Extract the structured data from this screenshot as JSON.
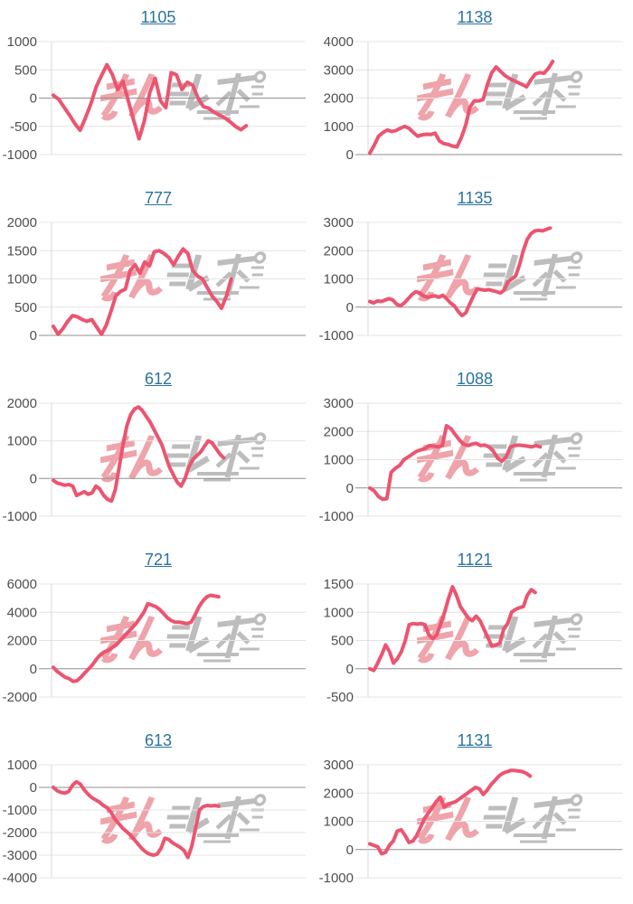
{
  "page": {
    "background": "#ffffff"
  },
  "style": {
    "line_color": "#eb5570",
    "link_color": "#2a739f",
    "tick_color": "#4f4f4f",
    "grid_color": "#e4e4e4",
    "zero_line_color": "#8f8f8f",
    "axis_line_color": "#d8d8d8",
    "watermark_pink": "#efa3aa",
    "watermark_gray": "#bdbdbd"
  },
  "watermark": {
    "text": "みんレポ",
    "pink_part": "みん",
    "gray_part": "レポ"
  },
  "chart_data": [
    {
      "type": "line",
      "title": "1105",
      "title_is_link": true,
      "ylim": [
        -1000,
        1000
      ],
      "yticks": [
        1000,
        500,
        0,
        -500,
        -1000
      ],
      "grid": true,
      "legend": "none",
      "x_extent": 0.77,
      "values": [
        50,
        -20,
        -160,
        -300,
        -450,
        -570,
        -350,
        -100,
        200,
        400,
        590,
        420,
        150,
        300,
        -50,
        -400,
        -720,
        -400,
        100,
        350,
        -50,
        -170,
        450,
        410,
        150,
        280,
        230,
        0,
        -150,
        -180,
        -250,
        -300,
        -350,
        -420,
        -500,
        -560,
        -490
      ]
    },
    {
      "type": "line",
      "title": "1138",
      "title_is_link": true,
      "ylim": [
        0,
        4000
      ],
      "yticks": [
        4000,
        3000,
        2000,
        1000,
        0
      ],
      "grid": true,
      "legend": "none",
      "x_extent": 0.73,
      "values": [
        50,
        330,
        650,
        780,
        870,
        820,
        850,
        930,
        1000,
        930,
        780,
        650,
        700,
        720,
        710,
        760,
        480,
        390,
        360,
        300,
        270,
        600,
        1030,
        1680,
        1900,
        1900,
        1950,
        2480,
        2900,
        3100,
        2950,
        2800,
        2700,
        2620,
        2550,
        2480,
        2400,
        2650,
        2850,
        2900,
        2880,
        3050,
        3300
      ]
    },
    {
      "type": "line",
      "title": "777",
      "title_is_link": true,
      "ylim": [
        0,
        2000
      ],
      "yticks": [
        2000,
        1500,
        1000,
        500,
        0
      ],
      "grid": true,
      "legend": "none",
      "x_extent": 0.71,
      "values": [
        160,
        20,
        120,
        250,
        350,
        330,
        280,
        250,
        280,
        150,
        20,
        180,
        430,
        700,
        780,
        820,
        1150,
        1250,
        1100,
        1300,
        1230,
        1480,
        1500,
        1450,
        1380,
        1250,
        1400,
        1530,
        1450,
        1150,
        1050,
        1000,
        850,
        700,
        600,
        480,
        700,
        1000
      ]
    },
    {
      "type": "line",
      "title": "1135",
      "title_is_link": true,
      "ylim": [
        -1000,
        3000
      ],
      "yticks": [
        3000,
        2000,
        1000,
        0,
        -1000
      ],
      "grid": true,
      "legend": "none",
      "x_extent": 0.72,
      "values": [
        200,
        150,
        220,
        200,
        250,
        300,
        250,
        100,
        50,
        150,
        300,
        450,
        550,
        500,
        400,
        350,
        380,
        400,
        350,
        420,
        300,
        150,
        50,
        -150,
        -300,
        -200,
        100,
        400,
        650,
        620,
        600,
        620,
        580,
        550,
        500,
        600,
        900,
        1000,
        1100,
        1500,
        2000,
        2400,
        2600,
        2700,
        2720,
        2700,
        2750,
        2800
      ]
    },
    {
      "type": "line",
      "title": "612",
      "title_is_link": true,
      "ylim": [
        -1000,
        2000
      ],
      "yticks": [
        2000,
        1000,
        0,
        -1000
      ],
      "grid": true,
      "legend": "none",
      "x_extent": 0.68,
      "values": [
        -50,
        -120,
        -150,
        -180,
        -160,
        -200,
        -450,
        -400,
        -350,
        -420,
        -380,
        -200,
        -280,
        -450,
        -550,
        -600,
        -300,
        300,
        900,
        1400,
        1700,
        1850,
        1900,
        1800,
        1650,
        1500,
        1300,
        1100,
        900,
        600,
        300,
        100,
        -100,
        -200,
        0,
        300,
        500,
        600,
        700,
        850,
        1000,
        950,
        800,
        650,
        550
      ]
    },
    {
      "type": "line",
      "title": "1088",
      "title_is_link": true,
      "ylim": [
        -1000,
        3000
      ],
      "yticks": [
        3000,
        2000,
        1000,
        0,
        -1000
      ],
      "grid": true,
      "legend": "none",
      "x_extent": 0.68,
      "values": [
        0,
        -100,
        -300,
        -400,
        -380,
        550,
        700,
        800,
        1000,
        1100,
        1200,
        1300,
        1350,
        1400,
        1500,
        1480,
        1450,
        1500,
        2200,
        2100,
        1900,
        1700,
        1550,
        1500,
        1550,
        1580,
        1500,
        1520,
        1450,
        1300,
        1050,
        950,
        1100,
        1450,
        1500,
        1520,
        1500,
        1480,
        1450,
        1500,
        1450
      ]
    },
    {
      "type": "line",
      "title": "721",
      "title_is_link": true,
      "ylim": [
        -2000,
        6000
      ],
      "yticks": [
        6000,
        4000,
        2000,
        0,
        -2000
      ],
      "grid": true,
      "legend": "none",
      "x_extent": 0.66,
      "values": [
        100,
        -200,
        -400,
        -600,
        -700,
        -900,
        -850,
        -600,
        -300,
        0,
        300,
        700,
        1000,
        1200,
        1300,
        1500,
        1700,
        2000,
        2300,
        2600,
        2900,
        3200,
        3600,
        4000,
        4600,
        4500,
        4400,
        4200,
        3900,
        3600,
        3400,
        3300,
        3300,
        3250,
        3200,
        3300,
        3800,
        4400,
        4800,
        5100,
        5200,
        5150,
        5100
      ]
    },
    {
      "type": "line",
      "title": "1121",
      "title_is_link": true,
      "ylim": [
        -500,
        1500
      ],
      "yticks": [
        1500,
        1000,
        500,
        0,
        -500
      ],
      "grid": true,
      "legend": "none",
      "x_extent": 0.66,
      "values": [
        0,
        -30,
        100,
        250,
        420,
        300,
        100,
        180,
        300,
        500,
        780,
        800,
        790,
        800,
        780,
        600,
        530,
        600,
        800,
        1000,
        1250,
        1450,
        1300,
        1100,
        1000,
        900,
        850,
        930,
        850,
        700,
        550,
        400,
        420,
        450,
        700,
        800,
        1000,
        1050,
        1080,
        1100,
        1300,
        1400,
        1350
      ]
    },
    {
      "type": "line",
      "title": "613",
      "title_is_link": true,
      "ylim": [
        -4000,
        1000
      ],
      "yticks": [
        1000,
        0,
        -1000,
        -2000,
        -3000,
        -4000
      ],
      "grid": true,
      "legend": "none",
      "x_extent": 0.66,
      "values": [
        0,
        -150,
        -220,
        -250,
        -180,
        100,
        250,
        150,
        -100,
        -300,
        -450,
        -550,
        -650,
        -800,
        -900,
        -1100,
        -1400,
        -1600,
        -1800,
        -1950,
        -2100,
        -2300,
        -2500,
        -2700,
        -2850,
        -2950,
        -3000,
        -2950,
        -2700,
        -2250,
        -2300,
        -2450,
        -2550,
        -2650,
        -2800,
        -3100,
        -2600,
        -1800,
        -1000,
        -850,
        -800,
        -820,
        -800,
        -830
      ]
    },
    {
      "type": "line",
      "title": "1131",
      "title_is_link": true,
      "ylim": [
        -1000,
        3000
      ],
      "yticks": [
        3000,
        2000,
        1000,
        0,
        -1000
      ],
      "grid": true,
      "legend": "none",
      "x_extent": 0.64,
      "values": [
        200,
        150,
        100,
        -150,
        -100,
        150,
        300,
        650,
        700,
        500,
        250,
        300,
        500,
        800,
        1100,
        1300,
        1500,
        1700,
        1850,
        1500,
        1600,
        1650,
        1700,
        1800,
        1900,
        2000,
        2100,
        2200,
        2150,
        1950,
        2100,
        2300,
        2450,
        2600,
        2700,
        2750,
        2800,
        2800,
        2780,
        2760,
        2700,
        2600
      ]
    }
  ]
}
